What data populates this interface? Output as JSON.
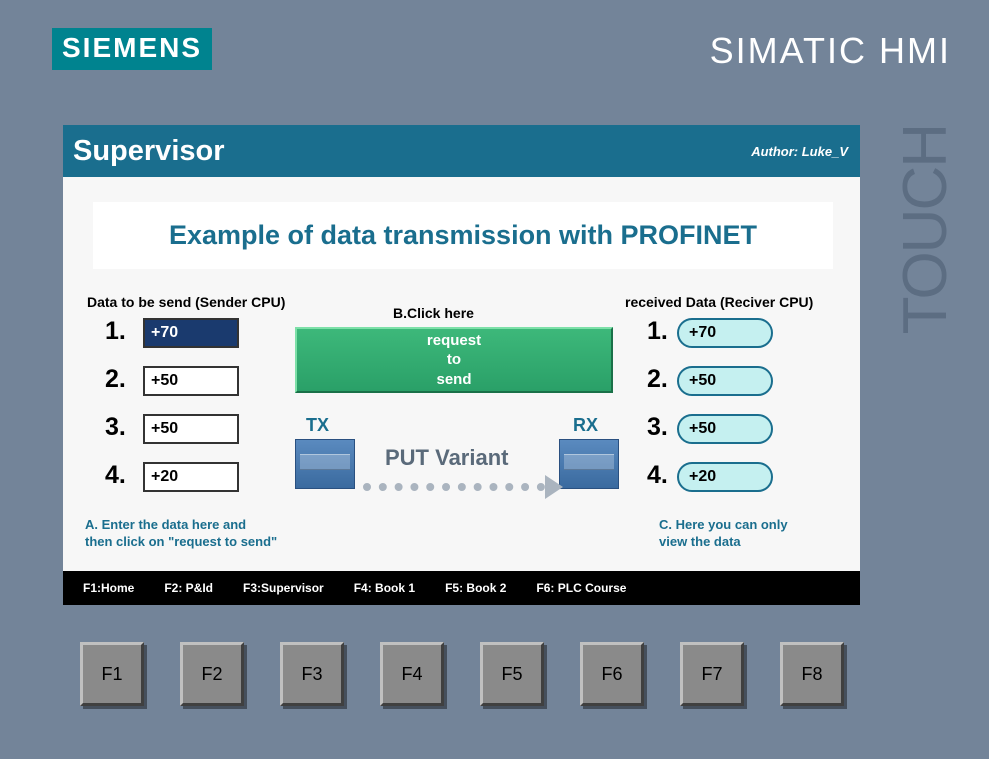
{
  "brand": "SIEMENS",
  "product": "SIMATIC HMI",
  "touch": "TOUCH",
  "header": {
    "title": "Supervisor",
    "author": "Author: Luke_V"
  },
  "mainHeading": "Example of data transmission with PROFINET",
  "sender": {
    "label": "Data to be send (Sender CPU)",
    "rows": [
      "1.",
      "2.",
      "3.",
      "4."
    ],
    "values": [
      "+70",
      "+50",
      "+50",
      "+20"
    ],
    "hint": "A. Enter the data here and\nthen click on \"request to send\""
  },
  "middle": {
    "clickHere": "B.Click here",
    "btnLine1": "request",
    "btnLine2": "to",
    "btnLine3": "send",
    "tx": "TX",
    "rx": "RX",
    "putVariant": "PUT Variant"
  },
  "receiver": {
    "label": "received Data (Reciver CPU)",
    "rows": [
      "1.",
      "2.",
      "3.",
      "4."
    ],
    "values": [
      "+70",
      "+50",
      "+50",
      "+20"
    ],
    "hint": "C. Here you can only\nview the data"
  },
  "menu": [
    "F1:Home",
    "F2: P&Id",
    "F3:Supervisor",
    "F4: Book 1",
    "F5: Book 2",
    "F6: PLC Course"
  ],
  "fkeys": [
    "F1",
    "F2",
    "F3",
    "F4",
    "F5",
    "F6",
    "F7",
    "F8"
  ],
  "colors": {
    "bg": "#738499",
    "headerBg": "#1a6e8e",
    "accent": "#1a6e8e",
    "btnGreen": "#2aa068",
    "pillBg": "#c5f0f0"
  }
}
